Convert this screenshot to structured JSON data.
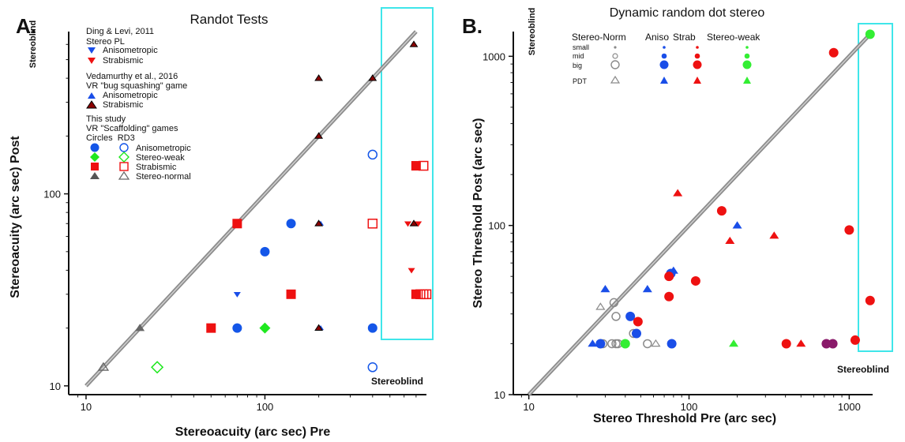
{
  "chart_data": [
    {
      "panel": "A.",
      "type": "scatter",
      "title": "Randot Tests",
      "xlabel": "Stereoacuity (arc sec) Pre",
      "ylabel": "Stereoacuity (arc sec) Post",
      "x_scale": "log",
      "y_scale": "log",
      "xlim": [
        8,
        800
      ],
      "ylim": [
        9,
        700
      ],
      "x_ticks": [
        10,
        100
      ],
      "x_tick_labels": [
        "10",
        "100"
      ],
      "y_ticks": [
        10,
        100
      ],
      "y_tick_labels": [
        "10",
        "100"
      ],
      "blind_y_label": "Stereoblind",
      "blind_x_label": "Stereoblind",
      "legend": {
        "g1_title": "Ding & Levi, 2011",
        "g1_sub": "Stereo PL",
        "g1_items": [
          "Anisometropic",
          "Strabismic"
        ],
        "g2_title": "Vedamurthy et al., 2016",
        "g2_sub": "VR \"bug squashing\" game",
        "g2_items": [
          "Anisometropic",
          "Strabismic"
        ],
        "g3_title": "This study",
        "g3_sub": "VR \"Scaffolding\" games",
        "g3_cols": "Circles  RD3",
        "g3_items": [
          "Anisometropic",
          "Stereo-weak",
          "Strabismic",
          "Stereo-normal"
        ]
      },
      "series": [
        {
          "marker": "ring-circle",
          "color": "#1456e8",
          "points": [
            [
              400,
              160
            ],
            [
              400,
              12.5
            ]
          ]
        },
        {
          "marker": "filled-circle",
          "color": "#1456e8",
          "points": [
            [
              70,
              20
            ],
            [
              100,
              50
            ],
            [
              140,
              70
            ],
            [
              400,
              20
            ]
          ]
        },
        {
          "marker": "filled-diamond",
          "color": "#1fe81f",
          "points": [
            [
              100,
              20
            ]
          ]
        },
        {
          "marker": "open-diamond",
          "color": "#1fe81f",
          "points": [
            [
              25,
              12.5
            ]
          ]
        },
        {
          "marker": "filled-square",
          "color": "#ee1111",
          "points": [
            [
              50,
              20
            ],
            [
              70,
              70
            ],
            [
              140,
              30
            ],
            [
              700,
              140
            ],
            [
              700,
              30
            ]
          ]
        },
        {
          "marker": "open-square",
          "color": "#ee1111",
          "points": [
            [
              400,
              70
            ],
            [
              770,
              140
            ],
            [
              740,
              30
            ],
            [
              770,
              30
            ],
            [
              800,
              30
            ]
          ]
        },
        {
          "marker": "filled-triangle",
          "color": "#666666",
          "points": [
            [
              20,
              20
            ]
          ]
        },
        {
          "marker": "open-triangle",
          "color": "#666666",
          "points": [
            [
              12.5,
              12.5
            ]
          ]
        },
        {
          "marker": "tri-down-small",
          "color": "#1a4ee8",
          "points": [
            [
              70,
              30
            ]
          ]
        },
        {
          "marker": "tri-down-small",
          "color": "#ee1111",
          "points": [
            [
              660,
              40
            ],
            [
              630,
              70
            ],
            [
              720,
              70
            ]
          ]
        },
        {
          "marker": "tri-up-small",
          "color": "#1a4ee8",
          "points": [
            [
              205,
              70
            ],
            [
              205,
              20
            ]
          ]
        },
        {
          "marker": "tri-up-dark",
          "color": "#8b0000",
          "points": [
            [
              200,
              400
            ],
            [
              400,
              400
            ],
            [
              680,
              600
            ],
            [
              200,
              200
            ],
            [
              200,
              70
            ],
            [
              200,
              20
            ],
            [
              680,
              70
            ]
          ]
        }
      ]
    },
    {
      "panel": "B.",
      "type": "scatter",
      "title": "Dynamic random dot stereo",
      "xlabel": "Stereo Threshold Pre (arc sec)",
      "ylabel": "Stereo Threshold Post (arc sec)",
      "x_scale": "log",
      "y_scale": "log",
      "xlim": [
        8,
        1400
      ],
      "ylim": [
        10,
        1400
      ],
      "x_ticks": [
        10,
        100,
        1000
      ],
      "x_tick_labels": [
        "10",
        "100",
        "1000"
      ],
      "y_ticks": [
        10,
        100,
        1000
      ],
      "y_tick_labels": [
        "10",
        "100",
        "1000"
      ],
      "blind_y_label": "Stereoblind",
      "blind_x_label": "Stereoblind",
      "legend": {
        "col_headers": [
          "Stereo-Norm",
          "Aniso",
          "Strab",
          "Stereo-weak"
        ],
        "row_labels": [
          "small",
          "mid",
          "big",
          "PDT"
        ]
      },
      "series": [
        {
          "marker": "open-circle-gray",
          "color": "#8a8a8a",
          "points": [
            [
              29,
              20
            ],
            [
              33,
              20
            ],
            [
              35,
              20
            ],
            [
              36,
              20
            ],
            [
              45,
              23
            ],
            [
              55,
              20
            ],
            [
              34,
              35
            ],
            [
              35,
              29
            ]
          ]
        },
        {
          "marker": "open-triangle-gray",
          "color": "#8a8a8a",
          "points": [
            [
              28,
              33
            ],
            [
              62,
              20
            ]
          ]
        },
        {
          "marker": "filled-circle",
          "color": "#1a4ee8",
          "points": [
            [
              28,
              20
            ],
            [
              43,
              29
            ],
            [
              47,
              23
            ],
            [
              78,
              20
            ],
            [
              77,
              52
            ]
          ]
        },
        {
          "marker": "filled-triangle",
          "color": "#1a4ee8",
          "points": [
            [
              30,
              42
            ],
            [
              55,
              42
            ],
            [
              80,
              54
            ],
            [
              200,
              100
            ],
            [
              25,
              20
            ]
          ]
        },
        {
          "marker": "filled-circle",
          "color": "#ee1111",
          "points": [
            [
              75,
              50
            ],
            [
              110,
              47
            ],
            [
              160,
              122
            ],
            [
              48,
              27
            ],
            [
              75,
              38
            ],
            [
              405,
              20
            ],
            [
              1090,
              21
            ],
            [
              1350,
              36
            ],
            [
              800,
              1050
            ],
            [
              1000,
              94
            ]
          ]
        },
        {
          "marker": "filled-triangle",
          "color": "#ee1111",
          "points": [
            [
              85,
              155
            ],
            [
              180,
              81
            ],
            [
              340,
              87
            ],
            [
              500,
              20
            ]
          ]
        },
        {
          "marker": "filled-circle",
          "color": "#8a1a6a",
          "points": [
            [
              720,
              20
            ],
            [
              790,
              20
            ]
          ]
        },
        {
          "marker": "filled-circle",
          "color": "#33ee33",
          "points": [
            [
              40,
              20
            ],
            [
              1350,
              1350
            ]
          ]
        },
        {
          "marker": "filled-triangle",
          "color": "#33ee33",
          "points": [
            [
              190,
              20
            ]
          ]
        }
      ]
    }
  ]
}
